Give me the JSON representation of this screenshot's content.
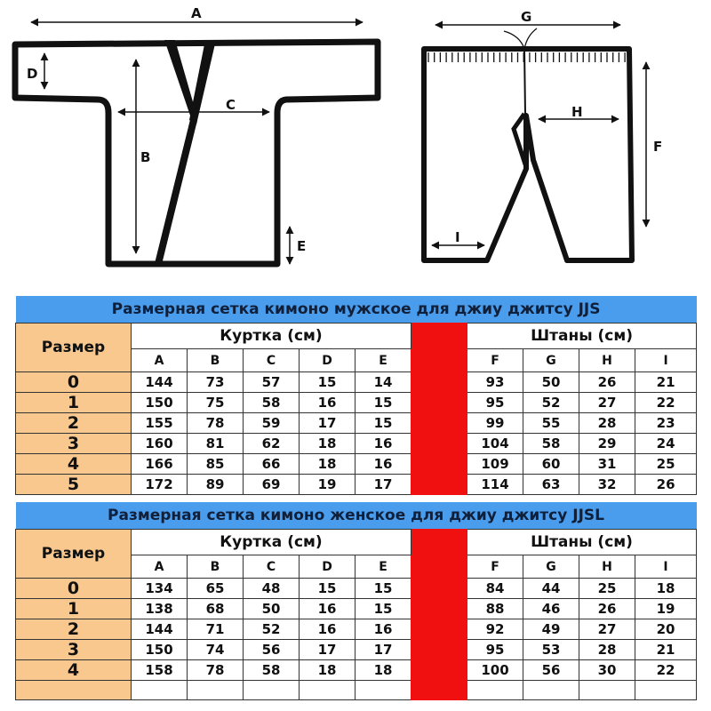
{
  "diagram": {
    "jacket_labels": [
      "A",
      "B",
      "C",
      "D",
      "E"
    ],
    "pants_labels": [
      "F",
      "G",
      "H",
      "I"
    ]
  },
  "tables": [
    {
      "title": "Размерная сетка кимоно мужское для джиу джитсу JJS",
      "size_label": "Размер",
      "jacket_label": "Куртка (см)",
      "pants_label": "Штаны (см)",
      "jacket_cols": [
        "A",
        "B",
        "C",
        "D",
        "E"
      ],
      "pants_cols": [
        "F",
        "G",
        "H",
        "I"
      ],
      "rows": [
        {
          "size": "0",
          "jacket": [
            "144",
            "73",
            "57",
            "15",
            "14"
          ],
          "pants": [
            "93",
            "50",
            "26",
            "21"
          ]
        },
        {
          "size": "1",
          "jacket": [
            "150",
            "75",
            "58",
            "16",
            "15"
          ],
          "pants": [
            "95",
            "52",
            "27",
            "22"
          ]
        },
        {
          "size": "2",
          "jacket": [
            "155",
            "78",
            "59",
            "17",
            "15"
          ],
          "pants": [
            "99",
            "55",
            "28",
            "23"
          ]
        },
        {
          "size": "3",
          "jacket": [
            "160",
            "81",
            "62",
            "18",
            "16"
          ],
          "pants": [
            "104",
            "58",
            "29",
            "24"
          ]
        },
        {
          "size": "4",
          "jacket": [
            "166",
            "85",
            "66",
            "18",
            "16"
          ],
          "pants": [
            "109",
            "60",
            "31",
            "25"
          ]
        },
        {
          "size": "5",
          "jacket": [
            "172",
            "89",
            "69",
            "19",
            "17"
          ],
          "pants": [
            "114",
            "63",
            "32",
            "26"
          ]
        }
      ]
    },
    {
      "title": "Размерная сетка кимоно женское для джиу джитсу JJSL",
      "size_label": "Размер",
      "jacket_label": "Куртка (см)",
      "pants_label": "Штаны (см)",
      "jacket_cols": [
        "A",
        "B",
        "C",
        "D",
        "E"
      ],
      "pants_cols": [
        "F",
        "G",
        "H",
        "I"
      ],
      "rows": [
        {
          "size": "0",
          "jacket": [
            "134",
            "65",
            "48",
            "15",
            "15"
          ],
          "pants": [
            "84",
            "44",
            "25",
            "18"
          ]
        },
        {
          "size": "1",
          "jacket": [
            "138",
            "68",
            "50",
            "16",
            "15"
          ],
          "pants": [
            "88",
            "46",
            "26",
            "19"
          ]
        },
        {
          "size": "2",
          "jacket": [
            "144",
            "71",
            "52",
            "16",
            "16"
          ],
          "pants": [
            "92",
            "49",
            "27",
            "20"
          ]
        },
        {
          "size": "3",
          "jacket": [
            "150",
            "74",
            "56",
            "17",
            "17"
          ],
          "pants": [
            "95",
            "53",
            "28",
            "21"
          ]
        },
        {
          "size": "4",
          "jacket": [
            "158",
            "78",
            "58",
            "18",
            "18"
          ],
          "pants": [
            "100",
            "56",
            "30",
            "22"
          ]
        },
        {
          "size": "",
          "jacket": [
            "",
            "",
            "",
            "",
            ""
          ],
          "pants": [
            "",
            "",
            "",
            ""
          ]
        }
      ]
    }
  ],
  "colors": {
    "title_bar": "#4a9cec",
    "size_column": "#f8c88e",
    "separator": "#f01010"
  }
}
